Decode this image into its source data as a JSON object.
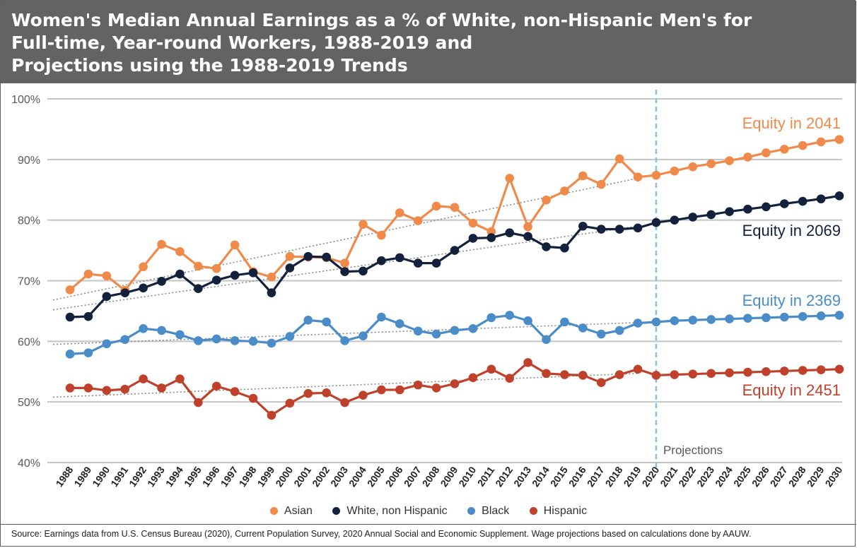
{
  "title": "Women's Median Annual Earnings as a % of White, non-Hispanic Men's for\nFull-time, Year-round Workers, 1988-2019 and\nProjections using the 1988-2019 Trends",
  "source": "Source: Earnings data from U.S. Census Bureau (2020), Current Population Survey, 2020 Annual Social and Economic Supplement. Wage projections based on calculations done by AAUW.",
  "legend": [
    {
      "label": "Asian",
      "color": "#f08a4b"
    },
    {
      "label": "White, non Hispanic",
      "color": "#14213d"
    },
    {
      "label": "Black",
      "color": "#4a8cc8"
    },
    {
      "label": "Hispanic",
      "color": "#c0412b"
    }
  ],
  "chart_data": {
    "type": "line",
    "title": "Women's Median Annual Earnings as a % of White, non-Hispanic Men's for Full-time, Year-round Workers, 1988-2019 and Projections using the 1988-2019 Trends",
    "x": [
      1988,
      1989,
      1990,
      1991,
      1992,
      1993,
      1994,
      1995,
      1996,
      1997,
      1998,
      1999,
      2000,
      2001,
      2002,
      2003,
      2004,
      2005,
      2006,
      2007,
      2008,
      2009,
      2010,
      2011,
      2012,
      2013,
      2014,
      2015,
      2016,
      2017,
      2018,
      2019,
      2020,
      2021,
      2022,
      2023,
      2024,
      2025,
      2026,
      2027,
      2028,
      2029,
      2030
    ],
    "x_tick_labels": [
      "1988",
      "1989",
      "1990",
      "1991",
      "1992",
      "1993",
      "1994",
      "1995",
      "1996",
      "1997",
      "1998",
      "1999",
      "2000",
      "2001",
      "2002",
      "2003",
      "2004",
      "2005",
      "2006",
      "2007",
      "2008",
      "2009",
      "2010",
      "2011",
      "2012",
      "2013",
      "2014",
      "2015",
      "2016",
      "2017",
      "2018",
      "2019",
      "2020",
      "2021",
      "2022",
      "2023",
      "2024",
      "2025",
      "2026",
      "2027",
      "2028",
      "2029",
      "2030"
    ],
    "ylim": [
      40,
      100
    ],
    "y_ticks": [
      40,
      50,
      60,
      70,
      80,
      90,
      100
    ],
    "y_tick_labels": [
      "40%",
      "50%",
      "60%",
      "70%",
      "80%",
      "90%",
      "100%"
    ],
    "grid": "horizontal",
    "legend_position": "bottom",
    "projection_start": 2020,
    "projection_label": "Projections",
    "series": [
      {
        "name": "Asian",
        "color": "#f08a4b",
        "label_color": "#f08a4b",
        "values": [
          68.5,
          71.1,
          70.8,
          68.4,
          72.3,
          76.0,
          74.8,
          72.4,
          72.0,
          75.9,
          71.5,
          70.6,
          74.0,
          73.9,
          73.8,
          72.9,
          79.3,
          77.5,
          81.2,
          79.9,
          82.3,
          82.1,
          79.5,
          78.1,
          86.9,
          78.9,
          83.3,
          84.8,
          87.3,
          85.9,
          90.1,
          87.1,
          87.4,
          88.1,
          88.8,
          89.3,
          89.8,
          90.4,
          91.1,
          91.7,
          92.3,
          92.9,
          93.3
        ],
        "trend": [
          67.4,
          86.9
        ],
        "callout": "Equity in 2041"
      },
      {
        "name": "White, non Hispanic",
        "color": "#14213d",
        "label_color": "#14213d",
        "values": [
          64.0,
          64.1,
          67.4,
          68.0,
          68.8,
          69.9,
          71.1,
          68.7,
          70.1,
          70.9,
          71.3,
          68.0,
          72.1,
          74.0,
          73.9,
          71.5,
          71.6,
          73.3,
          73.8,
          72.9,
          72.9,
          75.0,
          77.0,
          77.1,
          77.9,
          77.3,
          75.6,
          75.4,
          79.0,
          78.5,
          78.5,
          78.7,
          79.6,
          80.0,
          80.5,
          80.9,
          81.4,
          81.8,
          82.2,
          82.7,
          83.1,
          83.5,
          84.0
        ],
        "trend": [
          65.6,
          79.0
        ],
        "callout": "Equity in 2069"
      },
      {
        "name": "Black",
        "color": "#4a8cc8",
        "label_color": "#4a8cc8",
        "values": [
          57.9,
          58.1,
          59.6,
          60.3,
          62.1,
          61.8,
          61.1,
          60.1,
          60.4,
          60.1,
          60.0,
          59.7,
          60.8,
          63.5,
          63.2,
          60.1,
          60.9,
          64.0,
          62.9,
          61.7,
          61.2,
          61.8,
          62.1,
          63.9,
          64.3,
          63.4,
          60.3,
          63.2,
          62.2,
          61.2,
          61.8,
          63.0,
          63.2,
          63.4,
          63.5,
          63.6,
          63.7,
          63.8,
          63.9,
          64.0,
          64.1,
          64.2,
          64.3
        ],
        "trend": [
          59.6,
          63.1
        ],
        "callout": "Equity in 2369"
      },
      {
        "name": "Hispanic",
        "color": "#c0412b",
        "label_color": "#c0412b",
        "values": [
          52.3,
          52.3,
          51.9,
          52.1,
          53.8,
          52.3,
          53.8,
          49.9,
          52.6,
          51.7,
          50.6,
          47.8,
          49.8,
          51.4,
          51.5,
          49.9,
          51.1,
          52.0,
          52.0,
          52.8,
          52.3,
          53.0,
          54.0,
          55.4,
          53.9,
          56.5,
          54.7,
          54.5,
          54.4,
          53.2,
          54.5,
          55.4,
          54.4,
          54.5,
          54.6,
          54.7,
          54.8,
          54.9,
          55.0,
          55.1,
          55.2,
          55.3,
          55.4
        ],
        "trend": [
          50.9,
          54.7
        ],
        "callout": "Equity in 2451"
      }
    ]
  }
}
